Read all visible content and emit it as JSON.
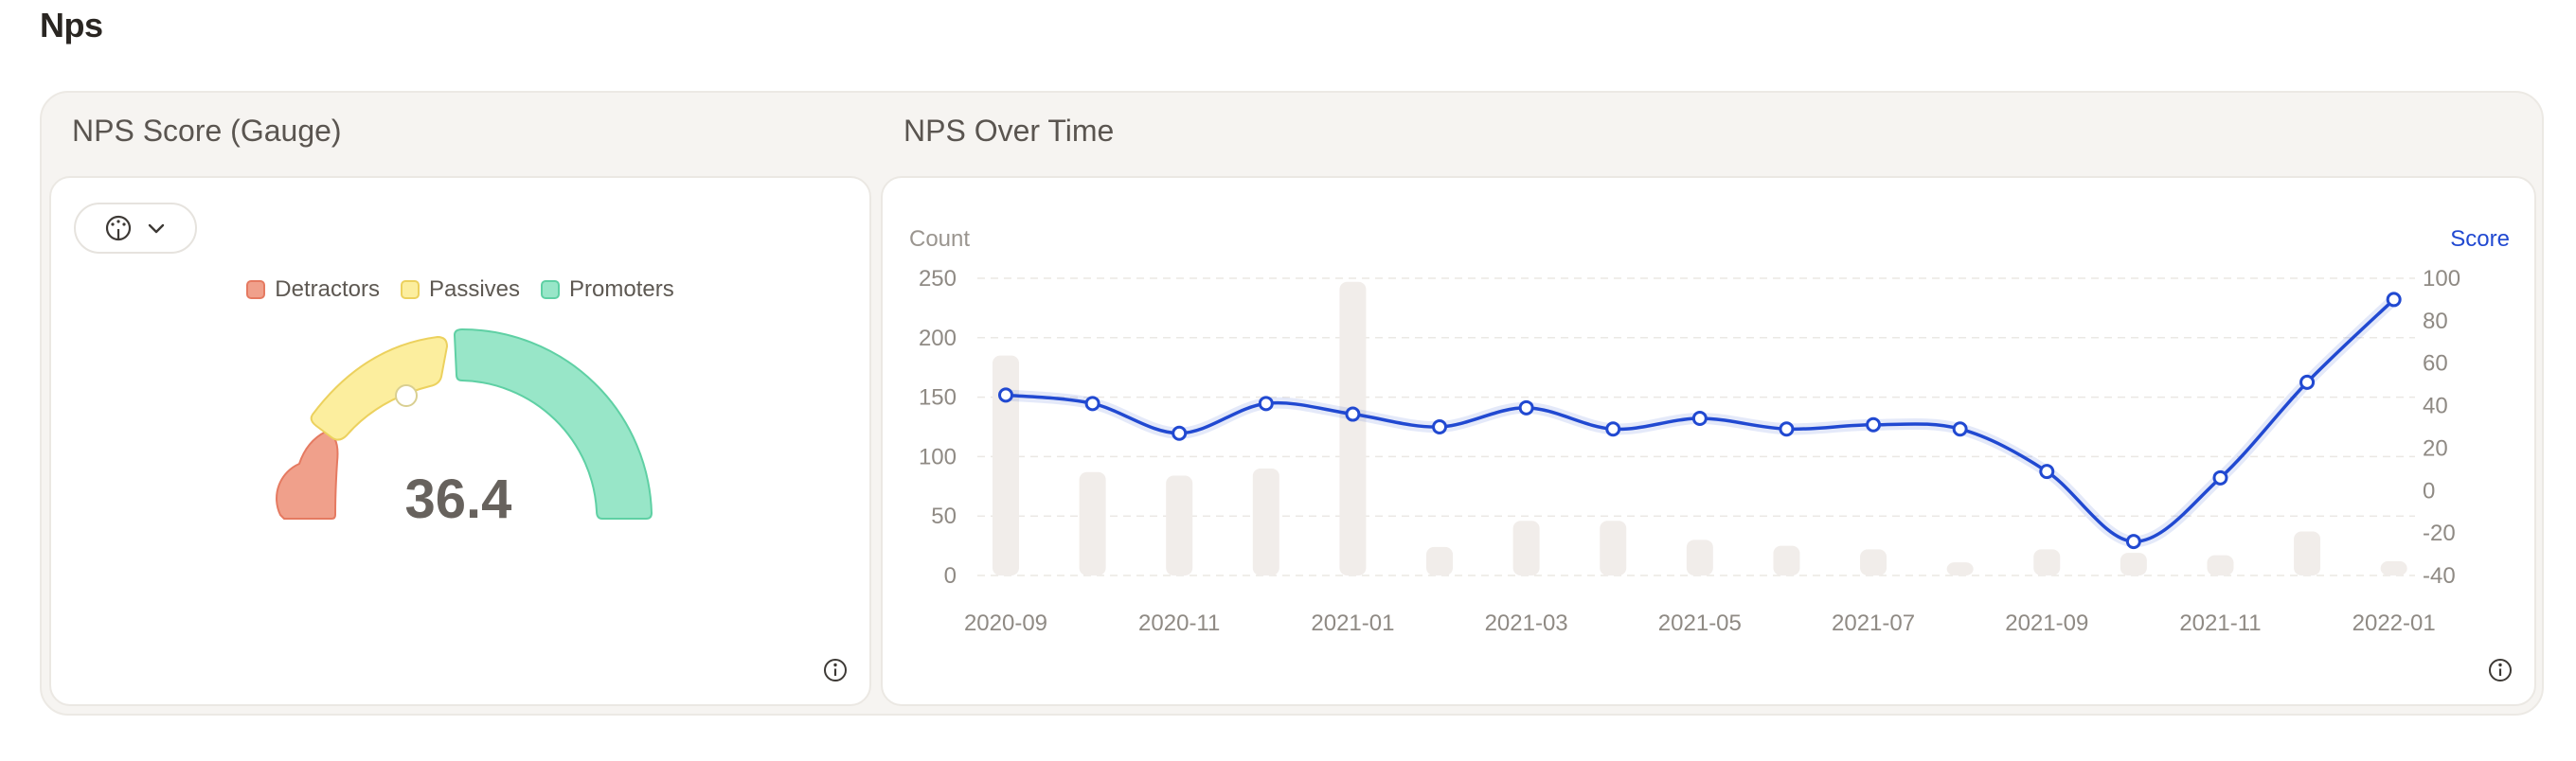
{
  "page": {
    "title": "Nps"
  },
  "gauge_section": {
    "title": "NPS Score (Gauge)",
    "legend": [
      {
        "label": "Detractors",
        "color": "#f0a08b",
        "border": "#e57a61"
      },
      {
        "label": "Passives",
        "color": "#fcee9e",
        "border": "#ecd15e"
      },
      {
        "label": "Promoters",
        "color": "#98e6c8",
        "border": "#5fd0a4"
      }
    ],
    "score": "36.4",
    "chart_type_icon": "gauge-icon",
    "info_icon": "info-icon"
  },
  "time_section": {
    "title": "NPS Over Time",
    "info_icon": "info-icon"
  },
  "chart_data": {
    "type": "line",
    "title": "NPS Over Time",
    "left_axis_label": "Count",
    "right_axis_label": "Score",
    "left_ylim": [
      0,
      250
    ],
    "left_ticks": [
      "0",
      "50",
      "100",
      "150",
      "200",
      "250"
    ],
    "right_ylim": [
      -40,
      100
    ],
    "right_ticks": [
      "-40",
      "-20",
      "0",
      "20",
      "40",
      "60",
      "80",
      "100"
    ],
    "x_tick_labels": [
      "2020-09",
      "2020-11",
      "2021-01",
      "2021-03",
      "2021-05",
      "2021-07",
      "2021-09",
      "2021-11",
      "2022-01"
    ],
    "months": [
      "2020-09",
      "2020-10",
      "2020-11",
      "2020-12",
      "2021-01",
      "2021-02",
      "2021-03",
      "2021-04",
      "2021-05",
      "2021-06",
      "2021-07",
      "2021-08",
      "2021-09",
      "2021-10",
      "2021-11",
      "2021-12",
      "2022-01"
    ],
    "series": [
      {
        "axis": "left",
        "kind": "bar",
        "color": "#f1edea",
        "values": [
          185,
          87,
          84,
          90,
          247,
          24,
          46,
          46,
          30,
          25,
          22,
          11,
          22,
          19,
          17,
          37,
          12
        ]
      },
      {
        "axis": "right",
        "kind": "line",
        "color": "#2149d1",
        "values": [
          45,
          41,
          27,
          41,
          36,
          30,
          39,
          29,
          34,
          29,
          31,
          29,
          9,
          -24,
          6,
          51,
          90
        ]
      }
    ],
    "grid": true
  }
}
